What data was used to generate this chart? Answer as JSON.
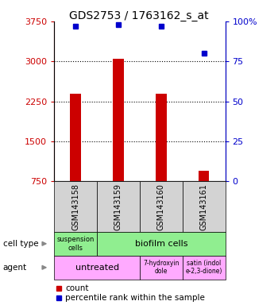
{
  "title": "GDS2753 / 1763162_s_at",
  "samples": [
    "GSM143158",
    "GSM143159",
    "GSM143160",
    "GSM143161"
  ],
  "counts": [
    2400,
    3050,
    2400,
    950
  ],
  "percentiles": [
    97,
    98,
    97,
    80
  ],
  "ylim_left": [
    750,
    3750
  ],
  "ylim_right": [
    0,
    100
  ],
  "yticks_left": [
    750,
    1500,
    2250,
    3000,
    3750
  ],
  "yticks_right": [
    0,
    25,
    50,
    75,
    100
  ],
  "bar_color": "#cc0000",
  "dot_color": "#0000cc",
  "sample_bg_color": "#d3d3d3",
  "left_axis_color": "#cc0000",
  "right_axis_color": "#0000cc",
  "cell_type_colors": [
    "#90ee90",
    "#90ee90"
  ],
  "agent_colors": [
    "#ffaaff",
    "#ffaaff",
    "#ffaaff"
  ],
  "title_fontsize": 10,
  "tick_fontsize": 8,
  "bar_width": 0.25
}
